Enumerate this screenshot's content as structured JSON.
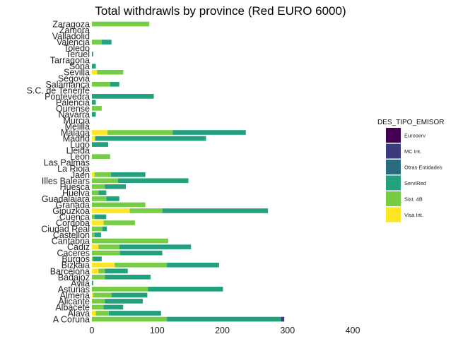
{
  "chart_data": {
    "type": "bar",
    "orientation": "horizontal",
    "stacked": true,
    "title": "Total withdrawls by  province (Red EURO 6000)",
    "xlabel": "",
    "ylabel": "",
    "xlim": [
      0,
      420
    ],
    "xticks": [
      "0",
      "100",
      "200",
      "300",
      "400"
    ],
    "grid": false,
    "legend": {
      "title": "DES_TIPO_EMISOR",
      "position": "right",
      "entries": [
        "Euroserv",
        "MC Int.",
        "Otras Entidades",
        "ServiRed",
        "Sist. 4B",
        "Visa Int."
      ]
    },
    "colors": {
      "Euroserv": "#440154",
      "MC Int.": "#3b3b7e",
      "Otras Entidades": "#2a6b80",
      "ServiRed": "#23a07e",
      "Sist. 4B": "#76cc44",
      "Visa Int.": "#fde725"
    },
    "stack_order": [
      "Visa Int.",
      "Sist. 4B",
      "ServiRed",
      "Otras Entidades",
      "MC Int.",
      "Euroserv"
    ],
    "categories": [
      "A Coruna",
      "Alava",
      "Albacete",
      "Alicante",
      "Almeria",
      "Asturias",
      "Avila",
      "Badajoz",
      "Barcelona",
      "Bizkaia",
      "Burgos",
      "Caceres",
      "Cadiz",
      "Cantabria",
      "Castellon",
      "Ciudad Real",
      "Cordoba",
      "Cuenca",
      "Gipuzkoa",
      "Granada",
      "Guadalajara",
      "Huelva",
      "Huesca",
      "Illes Balears",
      "Jaen",
      "La Rioja",
      "Las Palmas",
      "Leon",
      "Lleida",
      "Lugo",
      "Madrid",
      "Malaga",
      "Melilla",
      "Murcia",
      "Navarra",
      "Ourense",
      "Palencia",
      "Pontevedra",
      "S.C. de Tenerife",
      "Salamanca",
      "Segovia",
      "Sevilla",
      "Soria",
      "Tarragona",
      "Teruel",
      "Toledo",
      "Valencia",
      "Valladolid",
      "Zamora",
      "Zaragoza"
    ],
    "series": [
      {
        "name": "Visa Int.",
        "values": [
          0,
          6,
          0,
          0,
          2,
          0,
          0,
          0,
          10,
          35,
          0,
          0,
          10,
          0,
          0,
          0,
          18,
          0,
          58,
          0,
          0,
          0,
          0,
          0,
          4,
          0,
          0,
          0,
          0,
          0,
          5,
          24,
          0,
          0,
          0,
          0,
          0,
          0,
          0,
          0,
          0,
          8,
          0,
          0,
          0,
          0,
          0,
          0,
          0,
          0
        ]
      },
      {
        "name": "Sist. 4B",
        "values": [
          115,
          20,
          18,
          20,
          28,
          86,
          0,
          20,
          10,
          80,
          2,
          43,
          32,
          117,
          4,
          16,
          48,
          4,
          50,
          82,
          22,
          10,
          20,
          40,
          25,
          0,
          0,
          28,
          0,
          0,
          0,
          100,
          0,
          0,
          0,
          15,
          0,
          0,
          0,
          28,
          0,
          40,
          0,
          0,
          0,
          0,
          15,
          0,
          0,
          88
        ]
      },
      {
        "name": "ServiRed",
        "values": [
          175,
          80,
          30,
          58,
          55,
          115,
          2,
          70,
          35,
          80,
          13,
          65,
          110,
          0,
          10,
          7,
          0,
          18,
          162,
          0,
          20,
          12,
          32,
          108,
          53,
          0,
          0,
          0,
          0,
          25,
          170,
          112,
          0,
          0,
          6,
          0,
          6,
          95,
          0,
          14,
          0,
          0,
          6,
          0,
          2,
          0,
          15,
          0,
          0,
          0
        ]
      },
      {
        "name": "Otras Entidades",
        "values": [
          0,
          0,
          0,
          0,
          0,
          0,
          0,
          0,
          0,
          0,
          0,
          0,
          0,
          0,
          0,
          0,
          0,
          0,
          0,
          0,
          0,
          0,
          0,
          0,
          0,
          0,
          0,
          0,
          0,
          0,
          0,
          0,
          0,
          0,
          0,
          0,
          0,
          0,
          0,
          0,
          0,
          0,
          0,
          0,
          0,
          0,
          0,
          0,
          0,
          0
        ]
      },
      {
        "name": "MC Int.",
        "values": [
          5,
          0,
          0,
          0,
          0,
          0,
          0,
          0,
          0,
          0,
          0,
          0,
          0,
          0,
          0,
          0,
          0,
          0,
          0,
          0,
          0,
          0,
          0,
          0,
          0,
          0,
          0,
          0,
          0,
          0,
          0,
          0,
          0,
          0,
          0,
          0,
          0,
          0,
          0,
          0,
          0,
          0,
          0,
          0,
          0,
          0,
          0,
          0,
          0,
          0
        ]
      },
      {
        "name": "Euroserv",
        "values": [
          0,
          0,
          0,
          0,
          0,
          0,
          0,
          0,
          0,
          0,
          0,
          0,
          0,
          0,
          0,
          0,
          0,
          0,
          0,
          0,
          0,
          0,
          0,
          0,
          0,
          0,
          0,
          0,
          0,
          0,
          0,
          0,
          0,
          0,
          0,
          0,
          0,
          0,
          0,
          0,
          0,
          0,
          0,
          0,
          0,
          0,
          0,
          0,
          0,
          0
        ]
      }
    ]
  }
}
